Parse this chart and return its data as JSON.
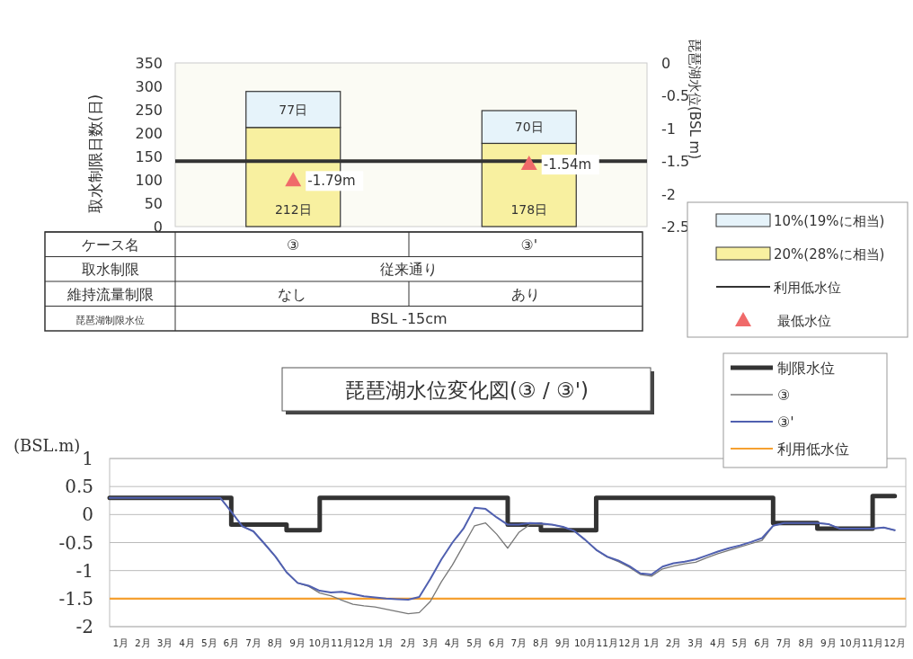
{
  "chart_data": [
    {
      "type": "bar",
      "stacked": true,
      "categories": [
        "③",
        "③'"
      ],
      "ylabel": "取水制限日数(日)",
      "y2label": "琵琶湖水位(BSL m)",
      "ylim": [
        0,
        350
      ],
      "yticks": [
        0,
        50,
        100,
        150,
        200,
        250,
        300,
        350
      ],
      "y2lim": [
        -2.5,
        0
      ],
      "y2ticks": [
        -2.5,
        -2,
        -1.5,
        -1,
        -0.5,
        0
      ],
      "legend": "bottom right",
      "series": [
        {
          "name": "20%(28%に相当)",
          "color": "#f8f0a0",
          "values": [
            212,
            178
          ],
          "value_labels": [
            "212日",
            "178日"
          ]
        },
        {
          "name": "10%(19%に相当)",
          "color": "#e6f3fa",
          "values": [
            77,
            70
          ],
          "value_labels": [
            "77日",
            "70日"
          ]
        },
        {
          "name": "最低水位",
          "type": "scatter",
          "axis": "y2",
          "marker": "triangle",
          "color": "#f06a6a",
          "values": [
            -1.79,
            -1.54
          ],
          "value_labels": [
            "-1.79m",
            "-1.54m"
          ]
        }
      ],
      "ref_lines": [
        {
          "axis": "y2",
          "value": -1.5,
          "label": "利用低水位",
          "color": "#333333"
        }
      ]
    },
    {
      "type": "other",
      "annotations": [
        "ケース名",
        "取水制限",
        "従来通り",
        "維持流量制限",
        "なし",
        "あり",
        "琵琶湖制限水位",
        "BSL -15cm"
      ]
    },
    {
      "type": "line",
      "title": "琵琶湖水位変化図(③ / ③')",
      "ylabel": "(BSL.m)",
      "ylim": [
        -2,
        1
      ],
      "yticks": [
        -2,
        -1.5,
        -1,
        -0.5,
        0,
        0.5,
        1
      ],
      "grid": "y",
      "legend": "top right",
      "categories": [
        null,
        "1月",
        null,
        "2月",
        null,
        "3月",
        null,
        "4月",
        null,
        "5月",
        null,
        "6月",
        null,
        "7月",
        null,
        "8月",
        null,
        "9月",
        null,
        "10月",
        null,
        "11月",
        null,
        "12月",
        null,
        "1月",
        null,
        "2月",
        null,
        "3月",
        null,
        "4月",
        null,
        "5月",
        null,
        "6月",
        null,
        "7月",
        null,
        "8月",
        null,
        "9月",
        null,
        "10月",
        null,
        "11月",
        null,
        "12月",
        null,
        "1月",
        null,
        "2月",
        null,
        "3月",
        null,
        "4月",
        null,
        "5月",
        null,
        "6月",
        null,
        "7月",
        null,
        "8月",
        null,
        "9月",
        null,
        "10月",
        null,
        "11月",
        null,
        "12月"
      ],
      "series": [
        {
          "name": "制限水位",
          "type": "step",
          "color": "#333333",
          "values": [
            0.3,
            0.3,
            0.3,
            0.3,
            0.3,
            0.3,
            0.3,
            0.3,
            0.3,
            0.3,
            0.3,
            -0.18,
            -0.18,
            -0.18,
            -0.18,
            -0.18,
            -0.28,
            -0.28,
            -0.28,
            0.3,
            0.3,
            0.3,
            0.3,
            0.3,
            0.3,
            0.3,
            0.3,
            0.3,
            0.3,
            0.3,
            0.3,
            0.3,
            0.3,
            0.3,
            0.3,
            0.3,
            -0.18,
            -0.18,
            -0.18,
            -0.28,
            -0.28,
            -0.28,
            -0.28,
            -0.28,
            0.3,
            0.3,
            0.3,
            0.3,
            0.3,
            0.3,
            0.3,
            0.3,
            0.3,
            0.3,
            0.3,
            0.3,
            0.3,
            0.3,
            0.3,
            0.3,
            -0.15,
            -0.15,
            -0.15,
            -0.15,
            -0.25,
            -0.25,
            -0.25,
            -0.25,
            -0.25,
            0.33,
            0.33,
            0.33
          ]
        },
        {
          "name": "③",
          "color": "#777777",
          "values": [
            0.3,
            0.3,
            0.3,
            0.3,
            0.3,
            0.3,
            0.3,
            0.3,
            0.3,
            0.3,
            0.3,
            0.05,
            -0.21,
            -0.3,
            -0.52,
            -0.75,
            -1.03,
            -1.22,
            -1.28,
            -1.4,
            -1.45,
            -1.53,
            -1.6,
            -1.63,
            -1.65,
            -1.69,
            -1.73,
            -1.77,
            -1.75,
            -1.55,
            -1.2,
            -0.9,
            -0.55,
            -0.2,
            -0.15,
            -0.35,
            -0.6,
            -0.32,
            -0.18,
            -0.18,
            -0.18,
            -0.22,
            -0.29,
            -0.45,
            -0.63,
            -0.76,
            -0.84,
            -0.94,
            -1.07,
            -1.1,
            -0.97,
            -0.92,
            -0.88,
            -0.85,
            -0.77,
            -0.7,
            -0.64,
            -0.58,
            -0.52,
            -0.46,
            -0.2,
            -0.15,
            -0.15,
            -0.15,
            -0.15,
            -0.17,
            -0.25,
            -0.25,
            -0.25,
            -0.25,
            -0.23,
            -0.28
          ]
        },
        {
          "name": "③'",
          "color": "#5060b0",
          "values": [
            0.3,
            0.3,
            0.3,
            0.3,
            0.3,
            0.3,
            0.3,
            0.3,
            0.3,
            0.3,
            0.3,
            0.05,
            -0.21,
            -0.3,
            -0.52,
            -0.75,
            -1.03,
            -1.22,
            -1.27,
            -1.36,
            -1.39,
            -1.38,
            -1.42,
            -1.46,
            -1.48,
            -1.5,
            -1.51,
            -1.52,
            -1.47,
            -1.15,
            -0.8,
            -0.5,
            -0.25,
            0.12,
            0.1,
            -0.05,
            -0.18,
            -0.18,
            -0.15,
            -0.16,
            -0.18,
            -0.22,
            -0.29,
            -0.45,
            -0.63,
            -0.75,
            -0.82,
            -0.92,
            -1.05,
            -1.07,
            -0.93,
            -0.87,
            -0.84,
            -0.8,
            -0.73,
            -0.66,
            -0.6,
            -0.55,
            -0.49,
            -0.42,
            -0.2,
            -0.15,
            -0.15,
            -0.15,
            -0.15,
            -0.17,
            -0.25,
            -0.25,
            -0.25,
            -0.25,
            -0.23,
            -0.28
          ]
        }
      ],
      "ref_lines": [
        {
          "axis": "y",
          "value": -1.5,
          "label": "利用低水位",
          "color": "#f5a030"
        }
      ]
    }
  ]
}
